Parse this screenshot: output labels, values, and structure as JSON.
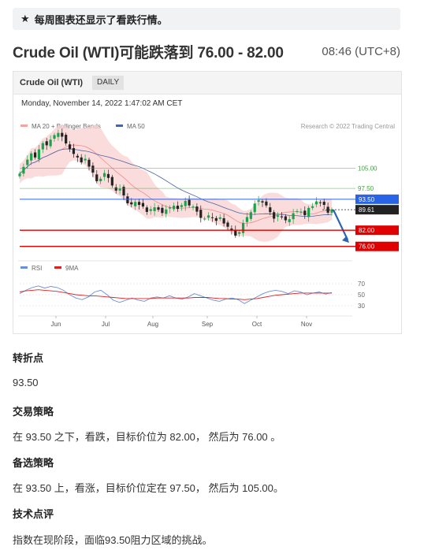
{
  "notice": {
    "icon": "star-icon",
    "text": "每周图表还显示了看跌行情。"
  },
  "header": {
    "title": "Crude Oil (WTI)可能跌落到 76.00 - 82.00",
    "time": "08:46 (UTC+8)"
  },
  "chart_card": {
    "symbol": "Crude Oil (WTI)",
    "interval": "DAILY",
    "datetime": "Monday, November 14, 2022 1:47:02 AM CET",
    "legend_main": [
      {
        "label": "MA 20 + Bollinger Bands",
        "color": "#f4a3a3"
      },
      {
        "label": "MA 50",
        "color": "#4a64a6"
      }
    ],
    "copyright": "Research © 2022 Trading Central",
    "legend_rsi": [
      {
        "label": "RSI",
        "color": "#6b8fd6"
      },
      {
        "label": "9MA",
        "color": "#e02020"
      }
    ]
  },
  "chart_data": [
    {
      "type": "candlestick",
      "title": "Crude Oil (WTI)",
      "x_tick_labels": [
        "Jun",
        "Jul",
        "Aug",
        "Sep",
        "Oct",
        "Nov"
      ],
      "y_range": [
        73,
        118
      ],
      "closes": [
        103.0,
        105.5,
        108.2,
        110.5,
        109.0,
        112.0,
        114.3,
        113.5,
        115.6,
        117.3,
        118.1,
        116.7,
        114.2,
        112.1,
        110.3,
        109.0,
        107.2,
        108.5,
        105.6,
        103.4,
        100.2,
        101.1,
        103.2,
        101.4,
        98.6,
        96.7,
        97.4,
        94.9,
        92.0,
        91.6,
        92.5,
        91.4,
        90.8,
        88.8,
        89.8,
        90.5,
        89.6,
        88.4,
        89.7,
        90.5,
        91.1,
        89.9,
        91.3,
        92.9,
        91.2,
        90.8,
        88.9,
        86.6,
        86.3,
        87.5,
        86.5,
        85.5,
        86.8,
        84.5,
        83.3,
        82.1,
        80.0,
        81.3,
        84.7,
        86.9,
        88.7,
        91.9,
        93.1,
        92.3,
        91.2,
        88.7,
        86.3,
        87.5,
        86.8,
        85.7,
        86.1,
        88.3,
        89.1,
        88.9,
        87.6,
        90.3,
        90.9,
        92.7,
        92.2,
        91.4,
        88.5,
        89.6
      ],
      "price_levels": [
        {
          "label": "105.00",
          "value": 105.0,
          "style": "support-resistance",
          "color": "#3aa83a"
        },
        {
          "label": "97.50",
          "value": 97.5,
          "style": "support-resistance",
          "color": "#3aa83a"
        },
        {
          "label": "93.50",
          "value": 93.5,
          "style": "pivot",
          "color": "#2a64e6"
        },
        {
          "label": "89.61",
          "value": 89.61,
          "style": "last-price",
          "color": "#222222"
        },
        {
          "label": "82.00",
          "value": 82.0,
          "style": "target",
          "color": "#e00000"
        },
        {
          "label": "76.00",
          "value": 76.0,
          "style": "target",
          "color": "#e00000"
        }
      ],
      "forecast": "down"
    },
    {
      "type": "line",
      "title": "RSI",
      "y_tick_labels": [
        "70",
        "50",
        "30"
      ],
      "y_range": [
        20,
        80
      ],
      "series": [
        {
          "name": "RSI",
          "color": "#6b8fd6",
          "values": [
            52,
            58,
            63,
            66,
            62,
            65,
            63,
            58,
            50,
            44,
            41,
            46,
            55,
            58,
            50,
            40,
            36,
            40,
            44,
            40,
            38,
            44,
            46,
            44,
            48,
            44,
            42,
            46,
            52,
            48,
            44,
            40,
            38,
            42,
            44,
            41,
            34,
            40,
            46,
            52,
            56,
            58,
            56,
            52,
            57,
            55,
            50,
            53,
            55,
            51,
            54
          ]
        },
        {
          "name": "9MA",
          "color": "#e02020",
          "values": [
            55,
            57,
            58,
            59,
            58,
            57,
            56,
            54,
            52,
            50,
            49,
            48,
            48,
            47,
            46,
            45,
            44,
            43,
            43,
            43,
            43,
            43,
            44,
            44,
            44,
            44,
            44,
            44,
            45,
            45,
            45,
            44,
            43,
            43,
            42,
            42,
            41,
            42,
            43,
            45,
            47,
            49,
            50,
            51,
            52,
            53,
            53,
            53,
            53,
            53,
            53
          ]
        }
      ]
    }
  ],
  "sections": [
    {
      "heading": "转折点",
      "body": "93.50"
    },
    {
      "heading": "交易策略",
      "body": "在 93.50 之下，看跌，目标价位为 82.00， 然后为 76.00 。"
    },
    {
      "heading": "备选策略",
      "body": "在 93.50 上，看涨，目标价位定在 97.50， 然后为 105.00。"
    },
    {
      "heading": "技术点评",
      "body": "指数在现阶段，面临93.50阻力区域的挑战。"
    }
  ]
}
